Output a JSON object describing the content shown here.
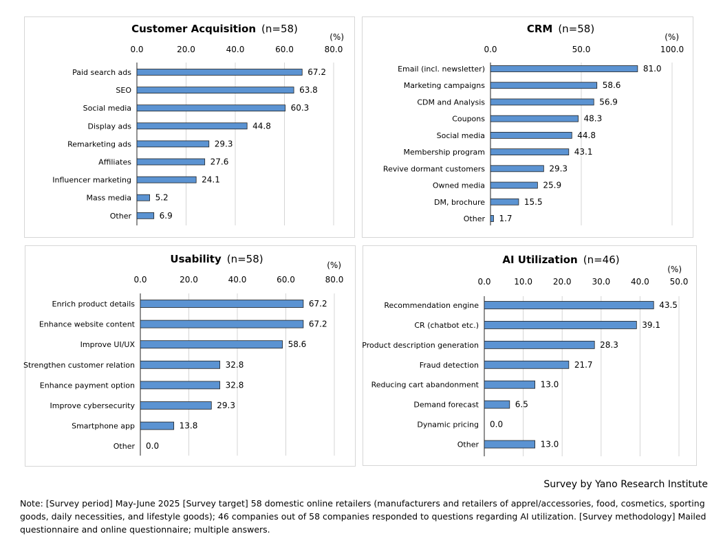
{
  "colors": {
    "bar": "#5b93d2",
    "bar_stroke": "#1f1f1f",
    "grid": "#d4d4d4",
    "axis": "#222222"
  },
  "unit": "(%)",
  "credit": "Survey by Yano Research Institute",
  "note": "Note: [Survey period] May-June 2025 [Survey target] 58 domestic online retailers (manufacturers and retailers of apprel/accessories, food, cosmetics, sporting goods, daily necessities, and lifestyle goods); 46 companies out of 58 companies responded to questions regarding AI utilization. [Survey methodology] Mailed questionnaire and online questionnaire; multiple answers.",
  "chart_data": [
    {
      "type": "bar",
      "orientation": "horizontal",
      "title": "Customer Acquisition",
      "subtitle": "(n=58)",
      "xlabel": "(%)",
      "xlim": [
        0,
        80
      ],
      "ticks": [
        0,
        20,
        40,
        60,
        80
      ],
      "tick_labels": [
        "0.0",
        "20.0",
        "40.0",
        "60.0",
        "80.0"
      ],
      "categories": [
        "Paid search ads",
        "SEO",
        "Social media",
        "Display ads",
        "Remarketing ads",
        "Affiliates",
        "Influencer marketing",
        "Mass media",
        "Other"
      ],
      "values": [
        67.2,
        63.8,
        60.3,
        44.8,
        29.3,
        27.6,
        24.1,
        5.2,
        6.9
      ],
      "value_labels": [
        "67.2",
        "63.8",
        "60.3",
        "44.8",
        "29.3",
        "27.6",
        "24.1",
        "5.2",
        "6.9"
      ]
    },
    {
      "type": "bar",
      "orientation": "horizontal",
      "title": "CRM",
      "subtitle": "(n=58)",
      "xlabel": "(%)",
      "xlim": [
        0,
        100
      ],
      "ticks": [
        0,
        50,
        100
      ],
      "tick_labels": [
        "0.0",
        "50.0",
        "100.0"
      ],
      "categories": [
        "Email (incl. newsletter)",
        "Marketing campaigns",
        "CDM and Analysis",
        "Coupons",
        "Social media",
        "Membership program",
        "Revive dormant customers",
        "Owned media",
        "DM, brochure",
        "Other"
      ],
      "values": [
        81.0,
        58.6,
        56.9,
        48.3,
        44.8,
        43.1,
        29.3,
        25.9,
        15.5,
        1.7
      ],
      "value_labels": [
        "81.0",
        "58.6",
        "56.9",
        "48.3",
        "44.8",
        "43.1",
        "29.3",
        "25.9",
        "15.5",
        "1.7"
      ]
    },
    {
      "type": "bar",
      "orientation": "horizontal",
      "title": "Usability",
      "subtitle": "(n=58)",
      "xlabel": "(%)",
      "xlim": [
        0,
        80
      ],
      "ticks": [
        0,
        20,
        40,
        60,
        80
      ],
      "tick_labels": [
        "0.0",
        "20.0",
        "40.0",
        "60.0",
        "80.0"
      ],
      "categories": [
        "Enrich product details",
        "Enhance website content",
        "Improve UI/UX",
        "Strengthen customer relation",
        "Enhance payment option",
        "Improve cybersecurity",
        "Smartphone app",
        "Other"
      ],
      "values": [
        67.2,
        67.2,
        58.6,
        32.8,
        32.8,
        29.3,
        13.8,
        0.0
      ],
      "value_labels": [
        "67.2",
        "67.2",
        "58.6",
        "32.8",
        "32.8",
        "29.3",
        "13.8",
        "0.0"
      ]
    },
    {
      "type": "bar",
      "orientation": "horizontal",
      "title": "AI Utilization",
      "subtitle": "(n=46)",
      "xlabel": "(%)",
      "xlim": [
        0,
        50
      ],
      "ticks": [
        0,
        10,
        20,
        30,
        40,
        50
      ],
      "tick_labels": [
        "0.0",
        "10.0",
        "20.0",
        "30.0",
        "40.0",
        "50.0"
      ],
      "categories": [
        "Recommendation engine",
        "CR (chatbot etc.)",
        "Product description generation",
        "Fraud detection",
        "Reducing cart abandonment",
        "Demand forecast",
        "Dynamic pricing",
        "Other"
      ],
      "values": [
        43.5,
        39.1,
        28.3,
        21.7,
        13.0,
        6.5,
        0.0,
        13.0
      ],
      "value_labels": [
        "43.5",
        "39.1",
        "28.3",
        "21.7",
        "13.0",
        "6.5",
        "0.0",
        "13.0"
      ]
    }
  ]
}
